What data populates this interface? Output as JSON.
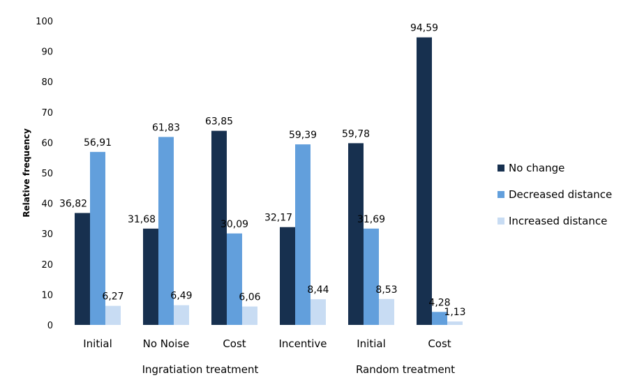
{
  "chart_data": {
    "type": "bar",
    "ylabel": "Relative frequency",
    "ylim": [
      0,
      100
    ],
    "yticks": [
      "0",
      "10",
      "20",
      "30",
      "40",
      "50",
      "60",
      "70",
      "80",
      "90",
      "100"
    ],
    "categories": [
      "Initial",
      "No Noise",
      "Cost",
      "Incentive",
      "Initial",
      "Cost"
    ],
    "groups": [
      {
        "label": "Ingratiation treatment",
        "span": [
          0,
          3
        ]
      },
      {
        "label": "Random treatment",
        "span": [
          4,
          5
        ]
      }
    ],
    "series": [
      {
        "name": "No change",
        "color": "#17304f",
        "values": [
          36.82,
          31.68,
          63.85,
          32.17,
          59.78,
          94.59
        ],
        "labels": [
          "36,82",
          "31,68",
          "63,85",
          "32,17",
          "59,78",
          "94,59"
        ]
      },
      {
        "name": "Decreased distance",
        "color": "#629fdc",
        "values": [
          56.91,
          61.83,
          30.09,
          59.39,
          31.69,
          4.28
        ],
        "labels": [
          "56,91",
          "61,83",
          "30,09",
          "59,39",
          "31,69",
          "4,28"
        ]
      },
      {
        "name": "Increased distance",
        "color": "#c8dcf3",
        "values": [
          6.27,
          6.49,
          6.06,
          8.44,
          8.53,
          1.13
        ],
        "labels": [
          "6,27",
          "6,49",
          "6,06",
          "8,44",
          "8,53",
          "1,13"
        ]
      }
    ],
    "legend_position": "right",
    "grid": false
  }
}
